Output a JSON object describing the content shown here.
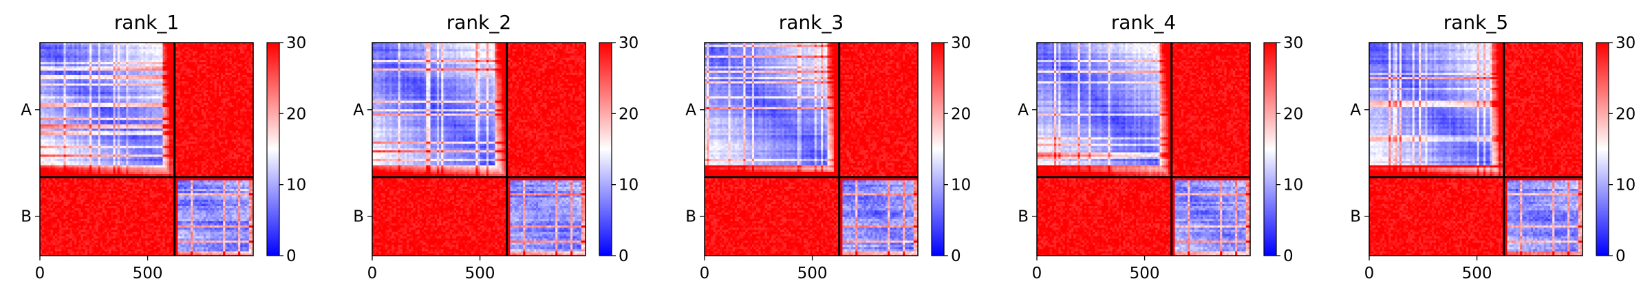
{
  "chart_data": {
    "type": "heatmap",
    "colormap": {
      "name": "bwr",
      "low": "#0000ff",
      "mid": "#ffffff",
      "high": "#ff0000"
    },
    "clim": [
      0,
      30
    ],
    "colorbar_ticks": [
      0,
      10,
      20,
      30
    ],
    "colorbar_tick_labels": [
      "0",
      "10",
      "20",
      "30"
    ],
    "n_residues": 990,
    "chain_boundary": 625,
    "xlim": [
      0,
      990
    ],
    "x_ticks": [
      0,
      500
    ],
    "x_tick_labels": [
      "0",
      "500"
    ],
    "y_tick_labels": [
      "A",
      "B"
    ],
    "y_tick_positions": [
      312,
      807
    ],
    "grid": false,
    "panels": [
      {
        "title": "rank_1"
      },
      {
        "title": "rank_2"
      },
      {
        "title": "rank_3"
      },
      {
        "title": "rank_4"
      },
      {
        "title": "rank_5"
      }
    ]
  }
}
